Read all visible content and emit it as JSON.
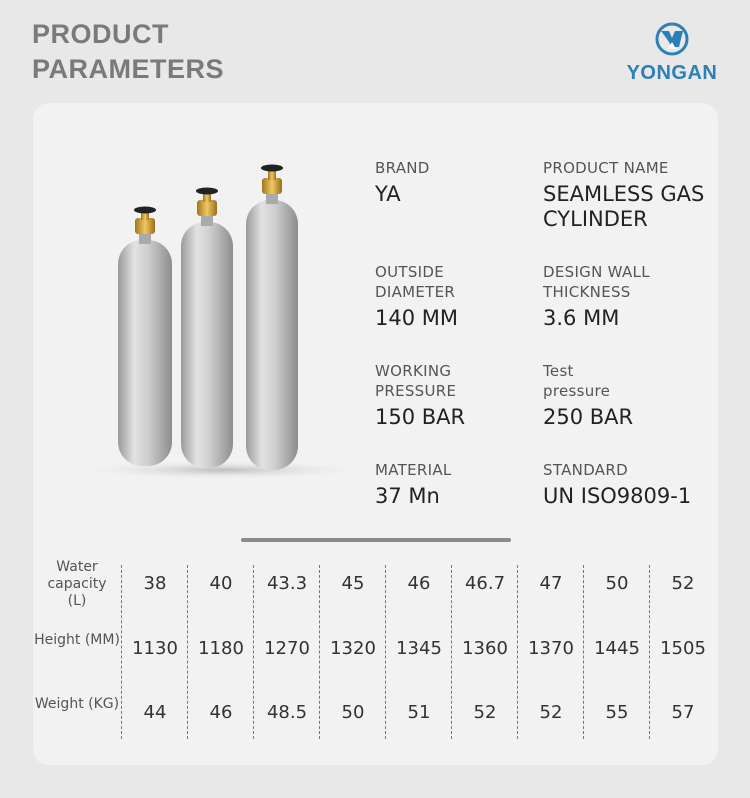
{
  "header": {
    "title_line1": "PRODUCT",
    "title_line2": "PARAMETERS"
  },
  "logo": {
    "text": "YONGAN",
    "color": "#2e7fb8"
  },
  "specs": [
    {
      "label": "BRAND",
      "value": "YA"
    },
    {
      "label": "PRODUCT NAME",
      "value": "SEAMLESS GAS CYLINDER"
    },
    {
      "label": "OUTSIDE DIAMETER",
      "value": "140 MM"
    },
    {
      "label": "DESIGN WALL THICKNESS",
      "value": "3.6 MM"
    },
    {
      "label": "WORKING PRESSURE",
      "value": "150 BAR"
    },
    {
      "label": "Test pressure",
      "value": "250 BAR"
    },
    {
      "label": "MATERIAL",
      "value": "37 Mn"
    },
    {
      "label": "STANDARD",
      "value": "UN ISO9809-1"
    }
  ],
  "table": {
    "rows": [
      {
        "label": "Water capacity (L)",
        "values": [
          "38",
          "40",
          "43.3",
          "45",
          "46",
          "46.7",
          "47",
          "50",
          "52"
        ]
      },
      {
        "label": "Height (MM)",
        "values": [
          "1130",
          "1180",
          "1270",
          "1320",
          "1345",
          "1360",
          "1370",
          "1445",
          "1505"
        ]
      },
      {
        "label": "Weight (KG)",
        "values": [
          "44",
          "46",
          "48.5",
          "50",
          "51",
          "52",
          "52",
          "55",
          "57"
        ]
      }
    ]
  }
}
